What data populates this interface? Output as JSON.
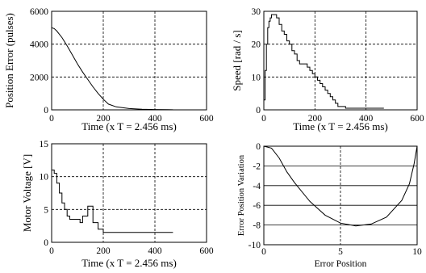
{
  "chart_data": [
    {
      "type": "line",
      "xlabel": "Time (x T = 2.456 ms)",
      "ylabel": "Position Error (pulses)",
      "xlim": [
        0,
        600
      ],
      "ylim": [
        0,
        6000
      ],
      "xticks": [
        "0",
        "200",
        "400",
        "600"
      ],
      "yticks": [
        "0",
        "2000",
        "4000",
        "6000"
      ],
      "grid": true,
      "series": [
        {
          "x": [
            0,
            10,
            20,
            40,
            60,
            80,
            100,
            120,
            140,
            160,
            180,
            200,
            220,
            250,
            300,
            350,
            400,
            450,
            470
          ],
          "values": [
            5000,
            4950,
            4800,
            4400,
            3900,
            3350,
            2800,
            2300,
            1850,
            1400,
            1000,
            650,
            350,
            180,
            80,
            40,
            20,
            10,
            5
          ]
        }
      ]
    },
    {
      "type": "line",
      "xlabel": "Time (x T = 2.456 ms)",
      "ylabel": "Speed [rad / s]",
      "xlim": [
        0,
        600
      ],
      "ylim": [
        0,
        30
      ],
      "xticks": [
        "0",
        "200",
        "400",
        "600"
      ],
      "yticks": [
        "0",
        "10",
        "20",
        "30"
      ],
      "grid": true,
      "series": [
        {
          "x": [
            0,
            5,
            10,
            15,
            20,
            25,
            30,
            40,
            50,
            60,
            70,
            80,
            90,
            100,
            110,
            120,
            130,
            140,
            150,
            160,
            170,
            180,
            190,
            200,
            210,
            220,
            230,
            240,
            250,
            260,
            270,
            280,
            290,
            300,
            320,
            340,
            360,
            380,
            400,
            420,
            440,
            460,
            470
          ],
          "values": [
            3,
            12,
            20,
            25,
            27,
            28,
            29,
            29,
            28,
            26,
            24,
            23,
            21,
            20,
            18,
            17,
            15,
            14,
            14,
            14,
            13,
            12,
            11,
            10,
            9,
            8,
            7,
            6,
            5,
            4,
            3,
            2,
            1,
            1,
            0.5,
            0.5,
            0.5,
            0.5,
            0.5,
            0.5,
            0.5,
            0.5,
            0.5
          ],
          "step": true
        }
      ]
    },
    {
      "type": "line",
      "xlabel": "Time (x T = 2.456 ms)",
      "ylabel": "Motor Voltage [V]",
      "xlim": [
        0,
        600
      ],
      "ylim": [
        0,
        15
      ],
      "xticks": [
        "0",
        "200",
        "400",
        "600"
      ],
      "yticks": [
        "0",
        "5",
        "10",
        "15"
      ],
      "grid": true,
      "series": [
        {
          "x": [
            0,
            10,
            20,
            30,
            40,
            50,
            60,
            70,
            100,
            110,
            120,
            140,
            160,
            180,
            200,
            220,
            470
          ],
          "values": [
            11,
            10.5,
            9,
            7.5,
            6,
            5,
            4,
            3.5,
            3.5,
            3,
            4,
            5.5,
            3,
            2,
            1.5,
            1.5,
            1.5
          ],
          "step": true
        }
      ]
    },
    {
      "type": "line",
      "xlabel": "Error Position",
      "ylabel": "Error Position Variation",
      "xlim": [
        0,
        10
      ],
      "ylim": [
        -10,
        0
      ],
      "xticks": [
        "0",
        "5",
        "10"
      ],
      "yticks": [
        "0",
        "-2",
        "-4",
        "-6",
        "-8",
        "-10"
      ],
      "grid": true,
      "series": [
        {
          "x": [
            0,
            0.5,
            1,
            1.5,
            2,
            3,
            4,
            5,
            6,
            7,
            8,
            9,
            9.5,
            9.8,
            10
          ],
          "values": [
            0,
            -0.2,
            -1.2,
            -2.6,
            -3.7,
            -5.6,
            -7.0,
            -7.8,
            -8.1,
            -7.9,
            -7.2,
            -5.5,
            -3.8,
            -1.8,
            0
          ]
        }
      ]
    }
  ]
}
